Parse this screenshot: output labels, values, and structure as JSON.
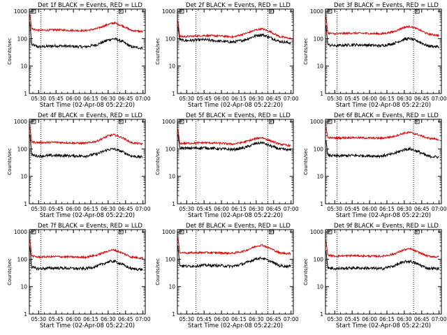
{
  "page": {
    "background": "#ffffff"
  },
  "colors": {
    "events": "#000000",
    "lld": "#dd0000",
    "axis": "#000000"
  },
  "common": {
    "xlabel": "Start Time (02-Apr-08 05:22:20)",
    "ylabel": "Counts/sec",
    "x_tick_labels": [
      "05:30",
      "05:45",
      "06:00",
      "06:15",
      "06:30",
      "06:45",
      "07:00"
    ],
    "y_tick_labels": [
      "1",
      "10",
      "100",
      "1000"
    ],
    "marker_label": "E"
  },
  "chart_data": [
    {
      "type": "line",
      "title": "Det 1f BLACK = Events, RED = LLD",
      "ylabel": "Counts/sec",
      "xlabel": "Start Time (02-Apr-08 05:22:20)",
      "x_range": [
        "05:22",
        "07:02"
      ],
      "y_range": [
        1,
        1200
      ],
      "y_scale": "log",
      "vlines": [
        "05:32",
        "06:38"
      ],
      "series": [
        {
          "name": "Events",
          "color": "#000000",
          "x": [
            "05:22",
            "05:24",
            "05:30",
            "05:45",
            "06:00",
            "06:10",
            "06:20",
            "06:30",
            "06:35",
            "06:42",
            "06:50",
            "07:00"
          ],
          "y": [
            700,
            60,
            50,
            55,
            52,
            50,
            60,
            90,
            100,
            80,
            50,
            45
          ]
        },
        {
          "name": "LLD",
          "color": "#dd0000",
          "x": [
            "05:22",
            "05:24",
            "05:30",
            "05:45",
            "06:00",
            "06:10",
            "06:20",
            "06:30",
            "06:35",
            "06:42",
            "06:50",
            "07:00"
          ],
          "y": [
            1100,
            230,
            200,
            210,
            200,
            195,
            230,
            330,
            380,
            300,
            200,
            180
          ]
        }
      ]
    },
    {
      "type": "line",
      "title": "Det 2f BLACK = Events, RED = LLD",
      "ylabel": "Counts/sec",
      "xlabel": "Start Time (02-Apr-08 05:22:20)",
      "x_range": [
        "05:22",
        "07:02"
      ],
      "y_range": [
        1,
        1200
      ],
      "y_scale": "log",
      "vlines": [
        "05:38",
        "06:40"
      ],
      "series": [
        {
          "name": "Events",
          "color": "#000000",
          "x": [
            "05:22",
            "05:24",
            "05:30",
            "05:45",
            "06:00",
            "06:10",
            "06:20",
            "06:30",
            "06:35",
            "06:42",
            "06:50",
            "07:00"
          ],
          "y": [
            400,
            90,
            85,
            92,
            80,
            75,
            90,
            130,
            140,
            110,
            80,
            70
          ]
        },
        {
          "name": "LLD",
          "color": "#dd0000",
          "x": [
            "05:22",
            "05:24",
            "05:30",
            "05:45",
            "06:00",
            "06:10",
            "06:20",
            "06:30",
            "06:35",
            "06:42",
            "06:50",
            "07:00"
          ],
          "y": [
            700,
            120,
            120,
            130,
            125,
            115,
            150,
            210,
            230,
            180,
            120,
            100
          ]
        }
      ]
    },
    {
      "type": "line",
      "title": "Det 3f BLACK = Events, RED = LLD",
      "ylabel": "Counts/sec",
      "xlabel": "Start Time (02-Apr-08 05:22:20)",
      "x_range": [
        "05:22",
        "07:02"
      ],
      "y_range": [
        1,
        1200
      ],
      "y_scale": "log",
      "vlines": [
        "05:32",
        "06:38"
      ],
      "series": [
        {
          "name": "Events",
          "color": "#000000",
          "x": [
            "05:22",
            "05:24",
            "05:30",
            "05:45",
            "06:00",
            "06:10",
            "06:20",
            "06:30",
            "06:35",
            "06:42",
            "06:50",
            "07:00"
          ],
          "y": [
            500,
            60,
            55,
            60,
            58,
            55,
            65,
            95,
            100,
            80,
            55,
            50
          ]
        },
        {
          "name": "LLD",
          "color": "#dd0000",
          "x": [
            "05:22",
            "05:24",
            "05:30",
            "05:45",
            "06:00",
            "06:10",
            "06:20",
            "06:30",
            "06:35",
            "06:42",
            "06:50",
            "07:00"
          ],
          "y": [
            1000,
            160,
            150,
            160,
            155,
            150,
            175,
            260,
            280,
            220,
            150,
            130
          ]
        }
      ]
    },
    {
      "type": "line",
      "title": "Det 4f BLACK = Events, RED = LLD",
      "ylabel": "Counts/sec",
      "xlabel": "Start Time (02-Apr-08 05:22:20)",
      "x_range": [
        "05:22",
        "07:02"
      ],
      "y_range": [
        1,
        1200
      ],
      "y_scale": "log",
      "vlines": [
        "05:32",
        "06:38"
      ],
      "series": [
        {
          "name": "Events",
          "color": "#000000",
          "x": [
            "05:22",
            "05:24",
            "05:30",
            "05:45",
            "06:00",
            "06:10",
            "06:20",
            "06:30",
            "06:35",
            "06:42",
            "06:50",
            "07:00"
          ],
          "y": [
            600,
            60,
            55,
            58,
            56,
            55,
            65,
            95,
            100,
            80,
            55,
            50
          ]
        },
        {
          "name": "LLD",
          "color": "#dd0000",
          "x": [
            "05:22",
            "05:24",
            "05:30",
            "05:45",
            "06:00",
            "06:10",
            "06:20",
            "06:30",
            "06:35",
            "06:42",
            "06:50",
            "07:00"
          ],
          "y": [
            1000,
            180,
            170,
            175,
            165,
            160,
            190,
            300,
            330,
            260,
            170,
            150
          ]
        }
      ]
    },
    {
      "type": "line",
      "title": "Det 5f BLACK = Events, RED = LLD",
      "ylabel": "Counts/sec",
      "xlabel": "Start Time (02-Apr-08 05:22:20)",
      "x_range": [
        "05:22",
        "07:02"
      ],
      "y_range": [
        1,
        1200
      ],
      "y_scale": "log",
      "vlines": [
        "05:38",
        "06:40"
      ],
      "series": [
        {
          "name": "Events",
          "color": "#000000",
          "x": [
            "05:22",
            "05:24",
            "05:30",
            "05:45",
            "06:00",
            "06:10",
            "06:20",
            "06:30",
            "06:35",
            "06:42",
            "06:50",
            "07:00"
          ],
          "y": [
            500,
            110,
            105,
            110,
            100,
            95,
            110,
            160,
            170,
            130,
            100,
            90
          ]
        },
        {
          "name": "LLD",
          "color": "#dd0000",
          "x": [
            "05:22",
            "05:24",
            "05:30",
            "05:45",
            "06:00",
            "06:10",
            "06:20",
            "06:30",
            "06:35",
            "06:42",
            "06:50",
            "07:00"
          ],
          "y": [
            800,
            160,
            160,
            170,
            160,
            150,
            180,
            240,
            260,
            200,
            150,
            130
          ]
        }
      ]
    },
    {
      "type": "line",
      "title": "Det 6f BLACK = Events, RED = LLD",
      "ylabel": "Counts/sec",
      "xlabel": "Start Time (02-Apr-08 05:22:20)",
      "x_range": [
        "05:22",
        "07:02"
      ],
      "y_range": [
        1,
        1200
      ],
      "y_scale": "log",
      "vlines": [
        "05:32",
        "06:38"
      ],
      "series": [
        {
          "name": "Events",
          "color": "#000000",
          "x": [
            "05:22",
            "05:24",
            "05:30",
            "05:45",
            "06:00",
            "06:10",
            "06:20",
            "06:30",
            "06:35",
            "06:42",
            "06:50",
            "07:00"
          ],
          "y": [
            300,
            60,
            55,
            58,
            56,
            55,
            65,
            95,
            100,
            80,
            55,
            50
          ]
        },
        {
          "name": "LLD",
          "color": "#dd0000",
          "x": [
            "05:22",
            "05:24",
            "05:30",
            "05:45",
            "06:00",
            "06:10",
            "06:20",
            "06:30",
            "06:35",
            "06:42",
            "06:50",
            "07:00"
          ],
          "y": [
            800,
            260,
            250,
            260,
            250,
            245,
            280,
            380,
            400,
            330,
            250,
            220
          ]
        }
      ]
    },
    {
      "type": "line",
      "title": "Det 7f BLACK = Events, RED = LLD",
      "ylabel": "Counts/sec",
      "xlabel": "Start Time (02-Apr-08 05:22:20)",
      "x_range": [
        "05:22",
        "07:02"
      ],
      "y_range": [
        1,
        1200
      ],
      "y_scale": "log",
      "vlines": [
        "05:32",
        "06:38"
      ],
      "series": [
        {
          "name": "Events",
          "color": "#000000",
          "x": [
            "05:22",
            "05:24",
            "05:30",
            "05:45",
            "06:00",
            "06:10",
            "06:20",
            "06:30",
            "06:35",
            "06:42",
            "06:50",
            "07:00"
          ],
          "y": [
            500,
            50,
            45,
            48,
            46,
            45,
            55,
            80,
            85,
            65,
            45,
            42
          ]
        },
        {
          "name": "LLD",
          "color": "#dd0000",
          "x": [
            "05:22",
            "05:24",
            "05:30",
            "05:45",
            "06:00",
            "06:10",
            "06:20",
            "06:30",
            "06:35",
            "06:42",
            "06:50",
            "07:00"
          ],
          "y": [
            900,
            130,
            120,
            125,
            120,
            118,
            140,
            200,
            220,
            170,
            120,
            110
          ]
        }
      ]
    },
    {
      "type": "line",
      "title": "Det 8f BLACK = Events, RED = LLD",
      "ylabel": "Counts/sec",
      "xlabel": "Start Time (02-Apr-08 05:22:20)",
      "x_range": [
        "05:22",
        "07:02"
      ],
      "y_range": [
        1,
        1200
      ],
      "y_scale": "log",
      "vlines": [
        "05:38",
        "06:40"
      ],
      "series": [
        {
          "name": "Events",
          "color": "#000000",
          "x": [
            "05:22",
            "05:24",
            "05:30",
            "05:45",
            "06:00",
            "06:10",
            "06:20",
            "06:30",
            "06:35",
            "06:42",
            "06:50",
            "07:00"
          ],
          "y": [
            500,
            60,
            55,
            60,
            58,
            55,
            70,
            105,
            110,
            85,
            58,
            55
          ]
        },
        {
          "name": "LLD",
          "color": "#dd0000",
          "x": [
            "05:22",
            "05:24",
            "05:30",
            "05:45",
            "06:00",
            "06:10",
            "06:20",
            "06:30",
            "06:35",
            "06:42",
            "06:50",
            "07:00"
          ],
          "y": [
            900,
            180,
            170,
            175,
            170,
            165,
            200,
            300,
            330,
            250,
            170,
            160
          ]
        }
      ]
    },
    {
      "type": "line",
      "title": "Det 9f BLACK = Events, RED = LLD",
      "ylabel": "Counts/sec",
      "xlabel": "Start Time (02-Apr-08 05:22:20)",
      "x_range": [
        "05:22",
        "07:02"
      ],
      "y_range": [
        1,
        1200
      ],
      "y_scale": "log",
      "vlines": [
        "05:32",
        "06:38"
      ],
      "series": [
        {
          "name": "Events",
          "color": "#000000",
          "x": [
            "05:22",
            "05:24",
            "05:30",
            "05:45",
            "06:00",
            "06:10",
            "06:20",
            "06:30",
            "06:35",
            "06:42",
            "06:50",
            "07:00"
          ],
          "y": [
            300,
            50,
            45,
            48,
            47,
            45,
            55,
            80,
            85,
            65,
            47,
            45
          ]
        },
        {
          "name": "LLD",
          "color": "#dd0000",
          "x": [
            "05:22",
            "05:24",
            "05:30",
            "05:45",
            "06:00",
            "06:10",
            "06:20",
            "06:30",
            "06:35",
            "06:42",
            "06:50",
            "07:00"
          ],
          "y": [
            700,
            140,
            130,
            135,
            130,
            128,
            150,
            220,
            240,
            180,
            130,
            120
          ]
        }
      ]
    }
  ]
}
